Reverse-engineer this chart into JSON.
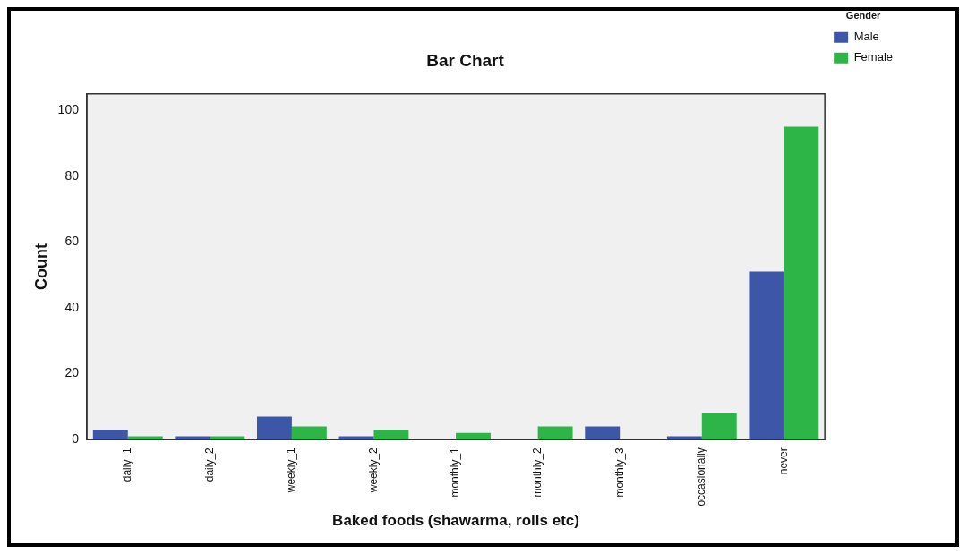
{
  "chart_data": {
    "type": "bar",
    "title": "Bar Chart",
    "xlabel": "Baked foods (shawarma, rolls etc)",
    "ylabel": "Count",
    "legend_title": "Gender",
    "categories": [
      "daily_1",
      "daily_2",
      "weekly_1",
      "weekly_2",
      "monthly_1",
      "monthly_2",
      "monthly_3",
      "occasionally",
      "never"
    ],
    "series": [
      {
        "name": "Male",
        "color": "#3d56a8",
        "values": [
          3,
          1,
          7,
          1,
          0,
          0,
          4,
          1,
          51
        ]
      },
      {
        "name": "Female",
        "color": "#2db547",
        "values": [
          1,
          1,
          4,
          3,
          2,
          4,
          0,
          8,
          95
        ]
      }
    ],
    "ylim": [
      0,
      105
    ],
    "yticks": [
      0,
      20,
      40,
      60,
      80,
      100
    ],
    "grid": false,
    "legend": "top right"
  }
}
